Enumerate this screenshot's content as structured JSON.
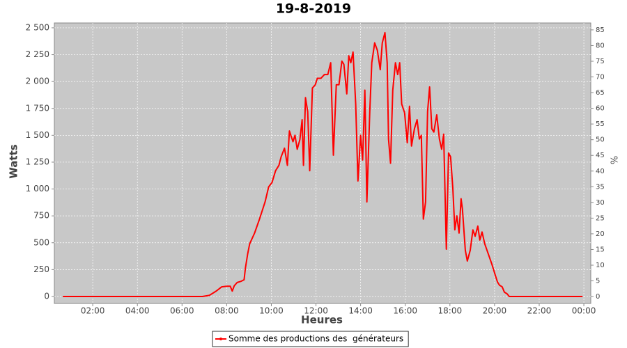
{
  "chart_data": {
    "type": "line",
    "title": "19-8-2019",
    "xlabel": "Heures",
    "ylabel": "Watts",
    "y2label": "%",
    "x": [
      0.66,
      6.91,
      7.22,
      7.53,
      7.78,
      8.0,
      8.16,
      8.25,
      8.34,
      8.47,
      8.63,
      8.78,
      8.84,
      8.94,
      9.03,
      9.25,
      9.47,
      9.72,
      9.88,
      10.03,
      10.19,
      10.34,
      10.44,
      10.59,
      10.72,
      10.81,
      10.97,
      11.06,
      11.16,
      11.28,
      11.38,
      11.44,
      11.53,
      11.63,
      11.72,
      11.84,
      11.97,
      12.06,
      12.22,
      12.38,
      12.53,
      12.66,
      12.78,
      12.91,
      13.03,
      13.16,
      13.25,
      13.38,
      13.47,
      13.56,
      13.66,
      13.78,
      13.88,
      14.0,
      14.09,
      14.19,
      14.28,
      14.41,
      14.5,
      14.63,
      14.75,
      14.88,
      14.97,
      15.09,
      15.19,
      15.25,
      15.34,
      15.44,
      15.56,
      15.66,
      15.75,
      15.84,
      15.97,
      16.09,
      16.19,
      16.28,
      16.41,
      16.53,
      16.63,
      16.72,
      16.81,
      16.91,
      17.0,
      17.09,
      17.19,
      17.28,
      17.41,
      17.53,
      17.63,
      17.72,
      17.84,
      17.94,
      18.03,
      18.13,
      18.22,
      18.31,
      18.41,
      18.5,
      18.56,
      18.69,
      18.78,
      18.91,
      19.03,
      19.13,
      19.25,
      19.34,
      19.44,
      19.56,
      19.72,
      19.88,
      20.03,
      20.13,
      20.22,
      20.34,
      20.44,
      20.56,
      20.66,
      23.94
    ],
    "series": [
      {
        "name": "Somme des productions des  générateurs",
        "color": "#ff0000",
        "values": [
          0,
          0,
          10,
          50,
          90,
          95,
          95,
          50,
          100,
          130,
          140,
          155,
          265,
          395,
          490,
          590,
          720,
          880,
          1020,
          1060,
          1170,
          1220,
          1300,
          1380,
          1220,
          1540,
          1440,
          1500,
          1370,
          1460,
          1645,
          1220,
          1850,
          1720,
          1170,
          1940,
          1970,
          2030,
          2030,
          2065,
          2065,
          2175,
          1315,
          1970,
          1970,
          2190,
          2160,
          1885,
          2240,
          2175,
          2275,
          1790,
          1075,
          1500,
          1270,
          1920,
          880,
          1720,
          2175,
          2360,
          2290,
          2110,
          2360,
          2455,
          2175,
          1465,
          1240,
          1920,
          2175,
          2065,
          2175,
          1790,
          1710,
          1430,
          1770,
          1400,
          1560,
          1645,
          1465,
          1500,
          720,
          880,
          1720,
          1950,
          1560,
          1530,
          1690,
          1465,
          1370,
          1510,
          440,
          1335,
          1300,
          1010,
          620,
          750,
          590,
          910,
          815,
          430,
          330,
          430,
          620,
          560,
          655,
          525,
          600,
          490,
          395,
          300,
          200,
          135,
          105,
          90,
          40,
          25,
          0,
          0
        ]
      }
    ],
    "xlim": [
      0.28,
      24.31
    ],
    "xticks": [
      {
        "value": 2,
        "label": "02:00"
      },
      {
        "value": 4,
        "label": "04:00"
      },
      {
        "value": 6,
        "label": "06:00"
      },
      {
        "value": 8,
        "label": "08:00"
      },
      {
        "value": 10,
        "label": "10:00"
      },
      {
        "value": 12,
        "label": "12:00"
      },
      {
        "value": 14,
        "label": "14:00"
      },
      {
        "value": 16,
        "label": "16:00"
      },
      {
        "value": 18,
        "label": "18:00"
      },
      {
        "value": 20,
        "label": "20:00"
      },
      {
        "value": 22,
        "label": "22:00"
      },
      {
        "value": 24,
        "label": "00:00"
      }
    ],
    "ylim": [
      -65,
      2545
    ],
    "yticks": [
      0,
      250,
      500,
      750,
      {
        "value": 1000,
        "label": "1 000"
      },
      {
        "value": 1250,
        "label": "1 250"
      },
      {
        "value": 1500,
        "label": "1 500"
      },
      {
        "value": 1750,
        "label": "1 750"
      },
      {
        "value": 2000,
        "label": "2 000"
      },
      {
        "value": 2250,
        "label": "2 250"
      },
      {
        "value": 2500,
        "label": "2 500"
      }
    ],
    "y2lim": [
      -2.2,
      87.2
    ],
    "y2ticks": [
      0,
      5,
      10,
      15,
      20,
      25,
      30,
      35,
      40,
      45,
      50,
      55,
      60,
      65,
      70,
      75,
      80,
      85
    ],
    "grid": true,
    "legend": "bottom"
  }
}
